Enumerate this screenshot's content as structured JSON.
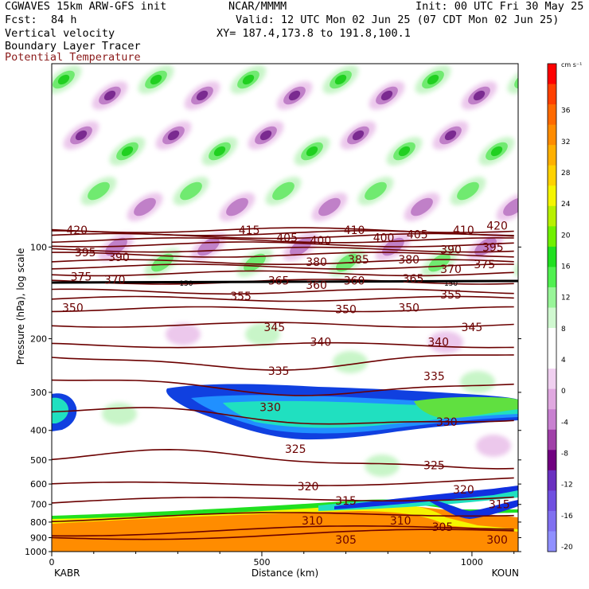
{
  "header": {
    "model": "CGWAVES 15km ARW-GFS init",
    "org": "NCAR/MMMM",
    "init": "Init: 00 UTC Fri 30 May 25",
    "fcst_label": "Fcst:",
    "fcst_value": "84 h",
    "valid": "Valid: 12 UTC Mon 02 Jun 25 (07 CDT Mon 02 Jun 25)",
    "field1": "Vertical velocity",
    "xy": "XY= 187.4,173.8 to 191.8,100.1",
    "field2": "Boundary Layer Tracer",
    "field3": "Potential Temperature"
  },
  "colors": {
    "theta": "#6b0000",
    "theta_label": "#6b0000",
    "field3_text": "#8b1a1a"
  },
  "chart_data": {
    "type": "heatmap",
    "ylabel": "Pressure (hPa), log scale",
    "xlabel": "Distance (km)",
    "x_start_label": "KABR",
    "x_end_label": "KOUN",
    "xlim": [
      0,
      1110
    ],
    "ylim": [
      1000,
      25
    ],
    "y_scale": "log",
    "x_ticks": [
      0,
      500,
      1000
    ],
    "y_ticks": [
      100,
      200,
      300,
      400,
      500,
      600,
      700,
      800,
      900,
      1000
    ],
    "colorbar": {
      "units": "cm s⁻¹",
      "labels": [
        "36",
        "32",
        "28",
        "24",
        "20",
        "16",
        "12",
        "8",
        "4",
        "0",
        "-4",
        "-8",
        "-12",
        "-16",
        "-20"
      ],
      "colors": [
        "#ff0000",
        "#ff4000",
        "#ff6a00",
        "#ff8c00",
        "#ffb000",
        "#ffd200",
        "#f5f500",
        "#b8f000",
        "#70f000",
        "#20e020",
        "#50f050",
        "#98f598",
        "#d0f8d0",
        "#ffffff",
        "#ffffff",
        "#f0d0f0",
        "#e0a8e0",
        "#c880d0",
        "#a040a8",
        "#700080",
        "#6a30c0",
        "#7050e0",
        "#8070f0",
        "#9090ff"
      ]
    },
    "theta_contours": [
      {
        "value": 300,
        "p": 900
      },
      {
        "value": 305,
        "p": 870
      },
      {
        "value": 310,
        "p": 780
      },
      {
        "value": 315,
        "p": 690
      },
      {
        "value": 320,
        "p": 610
      },
      {
        "value": 325,
        "p": 500
      },
      {
        "value": 330,
        "p": 360
      },
      {
        "value": 335,
        "p": 285
      },
      {
        "value": 340,
        "p": 235
      },
      {
        "value": 345,
        "p": 210
      },
      {
        "value": 350,
        "p": 180
      },
      {
        "value": 355,
        "p": 160
      },
      {
        "value": 360,
        "p": 148
      },
      {
        "value": 365,
        "p": 140
      },
      {
        "value": 370,
        "p": 130
      },
      {
        "value": 375,
        "p": 122
      },
      {
        "value": 380,
        "p": 116
      },
      {
        "value": 385,
        "p": 112
      },
      {
        "value": 390,
        "p": 106
      },
      {
        "value": 395,
        "p": 102
      },
      {
        "value": 400,
        "p": 98
      },
      {
        "value": 405,
        "p": 95
      },
      {
        "value": 410,
        "p": 92
      },
      {
        "value": 415,
        "p": 90
      },
      {
        "value": 420,
        "p": 88
      }
    ],
    "theta_labels": [
      {
        "text": "420",
        "x": 60,
        "p": 88
      },
      {
        "text": "415",
        "x": 470,
        "p": 88
      },
      {
        "text": "410",
        "x": 720,
        "p": 88
      },
      {
        "text": "410",
        "x": 980,
        "p": 88
      },
      {
        "text": "420",
        "x": 1060,
        "p": 85
      },
      {
        "text": "405",
        "x": 560,
        "p": 93
      },
      {
        "text": "400",
        "x": 640,
        "p": 95
      },
      {
        "text": "400",
        "x": 790,
        "p": 93
      },
      {
        "text": "405",
        "x": 870,
        "p": 91
      },
      {
        "text": "395",
        "x": 80,
        "p": 104
      },
      {
        "text": "390",
        "x": 160,
        "p": 108
      },
      {
        "text": "390",
        "x": 950,
        "p": 102
      },
      {
        "text": "395",
        "x": 1050,
        "p": 100
      },
      {
        "text": "380",
        "x": 630,
        "p": 112
      },
      {
        "text": "385",
        "x": 730,
        "p": 110
      },
      {
        "text": "380",
        "x": 850,
        "p": 110
      },
      {
        "text": "370",
        "x": 950,
        "p": 118
      },
      {
        "text": "375",
        "x": 1030,
        "p": 114
      },
      {
        "text": "375",
        "x": 70,
        "p": 125
      },
      {
        "text": "370",
        "x": 150,
        "p": 128
      },
      {
        "text": "365",
        "x": 540,
        "p": 129
      },
      {
        "text": "360",
        "x": 630,
        "p": 133
      },
      {
        "text": "360",
        "x": 720,
        "p": 129
      },
      {
        "text": "365",
        "x": 860,
        "p": 127
      },
      {
        "text": "150",
        "x": 320,
        "p": 130
      },
      {
        "text": "150",
        "x": 950,
        "p": 130
      },
      {
        "text": "355",
        "x": 450,
        "p": 145
      },
      {
        "text": "355",
        "x": 950,
        "p": 143
      },
      {
        "text": "350",
        "x": 50,
        "p": 158
      },
      {
        "text": "350",
        "x": 700,
        "p": 160
      },
      {
        "text": "350",
        "x": 850,
        "p": 158
      },
      {
        "text": "345",
        "x": 530,
        "p": 183
      },
      {
        "text": "345",
        "x": 1000,
        "p": 183
      },
      {
        "text": "340",
        "x": 640,
        "p": 205
      },
      {
        "text": "340",
        "x": 920,
        "p": 205
      },
      {
        "text": "335",
        "x": 540,
        "p": 255
      },
      {
        "text": "335",
        "x": 910,
        "p": 265
      },
      {
        "text": "330",
        "x": 520,
        "p": 335
      },
      {
        "text": "330",
        "x": 940,
        "p": 375
      },
      {
        "text": "325",
        "x": 580,
        "p": 460
      },
      {
        "text": "325",
        "x": 910,
        "p": 520
      },
      {
        "text": "320",
        "x": 610,
        "p": 610
      },
      {
        "text": "320",
        "x": 980,
        "p": 625
      },
      {
        "text": "315",
        "x": 700,
        "p": 680
      },
      {
        "text": "315",
        "x": 1065,
        "p": 700
      },
      {
        "text": "310",
        "x": 620,
        "p": 790
      },
      {
        "text": "310",
        "x": 830,
        "p": 790
      },
      {
        "text": "305",
        "x": 930,
        "p": 830
      },
      {
        "text": "305",
        "x": 700,
        "p": 915
      },
      {
        "text": "300",
        "x": 1060,
        "p": 915
      }
    ],
    "tropopause_p": 130
  }
}
